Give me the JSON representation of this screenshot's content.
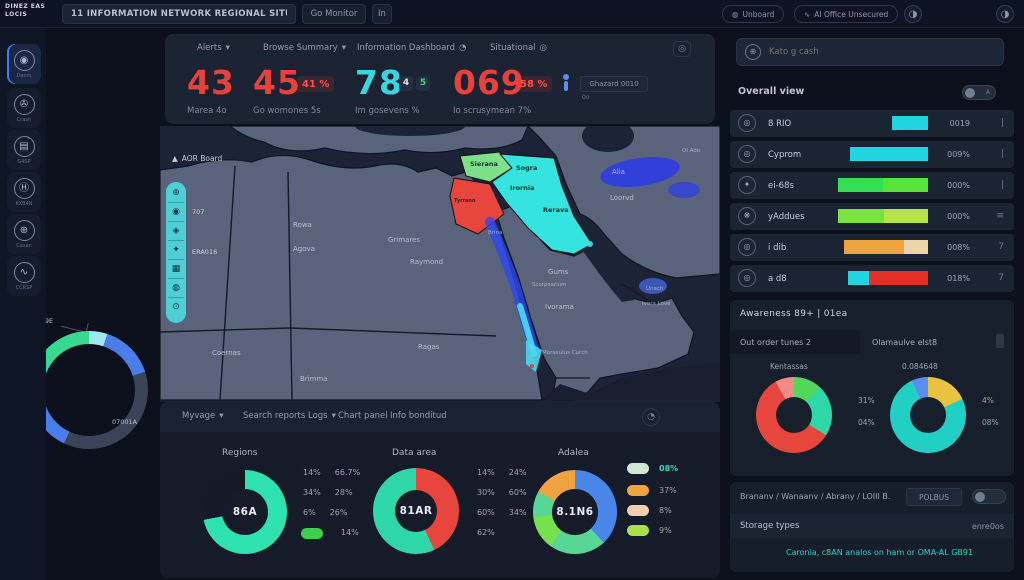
{
  "colors": {
    "accent_cyan": "#3ad6e0",
    "alert_red": "#e8413a",
    "teal": "#2fd6a8",
    "green": "#42d957",
    "lime": "#8ae23c",
    "orange": "#eda23f",
    "blue": "#4a7de8"
  },
  "icons": {
    "caret": "▾",
    "half": "◑",
    "ring": "◎",
    "clock": "◔",
    "menu": "≡"
  },
  "topbar": {
    "logo_line1": "DINEZ EAS",
    "logo_line2": "LOCIS",
    "search_value": "11 INFORMATION NETWORK REGIONAL SITUATIONAL...",
    "go_button": "Go Monitor",
    "in_button": "In",
    "pill_unboard": "Unboard",
    "pill_ai": "AI Office Unsecured"
  },
  "sidebar": {
    "items": [
      {
        "glyph": "◉",
        "label": "Dacro"
      },
      {
        "glyph": "✇",
        "label": "Crash"
      },
      {
        "glyph": "▤",
        "label": "G4SP"
      },
      {
        "glyph": "Ⓗ",
        "label": "KXB4N"
      },
      {
        "glyph": "⊕",
        "label": "Casan"
      },
      {
        "glyph": "∿",
        "label": "CCRSP"
      }
    ]
  },
  "stats": {
    "tabs": [
      "Alerts",
      "Browse Summary",
      "Information Dashboard",
      "Situational"
    ],
    "items": [
      {
        "value": "43",
        "label": "Marea 4o"
      },
      {
        "value": "45",
        "badge": "41 %",
        "label": "Go womones 5s"
      },
      {
        "value": "78",
        "chip1": "4",
        "chip2": "5",
        "label": "Im gosevens %"
      },
      {
        "value": "069",
        "badge": "58 %",
        "label": "Io scrusymean 7%"
      }
    ],
    "ghost_title": "Ghazard 0010",
    "ghost_sub": "0o"
  },
  "map": {
    "corner_label": "AOR Board",
    "toolbar_label_1": "707",
    "toolbar_label_2": "ERA016",
    "toolbar_glyphs": [
      "⊕",
      "◉",
      "◈",
      "✦",
      "▦",
      "◍",
      "⊙"
    ],
    "labels": [
      "Rowa",
      "Agova",
      "Grimares",
      "Raymond",
      "Sierana",
      "Sogra",
      "Irornia",
      "Rerava",
      "Tyrrann",
      "Alia",
      "Loorvd",
      "Ol Ado",
      "Gums",
      "Scorpsarium",
      "Ivorama",
      "Unach",
      "Ivora Love",
      "Ragas",
      "Morasuius Curch",
      "Coernas",
      "Brimma",
      "Brina"
    ]
  },
  "left_donut": {
    "segments": [
      [
        "#9fe8f2",
        5
      ],
      [
        "#4a7de8",
        15
      ],
      [
        "#3a4357",
        37
      ],
      [
        "#4a7de8",
        12
      ],
      [
        "#2fd6a8",
        16
      ],
      [
        "#35d98f",
        15
      ]
    ],
    "label_a": "WV9E",
    "label_b": "07001A"
  },
  "bottom": {
    "tabs": [
      "Myvage",
      "Search reports Logs",
      "Chart panel",
      "Info bonditud"
    ],
    "sections": [
      {
        "title": "Regions",
        "center": "86A",
        "segments": [
          [
            "#2fe3b0",
            72
          ],
          [
            "#141a27",
            28
          ]
        ],
        "legend": [
          [
            "14%",
            "66.7%"
          ],
          [
            "34%",
            "28%"
          ],
          [
            "6%",
            "26%"
          ],
          [
            "",
            "14%"
          ]
        ],
        "pill_color": "#3ecf4e"
      },
      {
        "title": "Data area",
        "center": "81AR",
        "segments": [
          [
            "#e8453c",
            43
          ],
          [
            "#2fd6a8",
            57
          ]
        ],
        "legend": [
          [
            "14%",
            "24%"
          ],
          [
            "30%",
            "60%"
          ],
          [
            "60%",
            "34%"
          ],
          [
            "",
            "62%"
          ]
        ]
      },
      {
        "title": "Adalea",
        "center": "8.1N6",
        "segments": [
          [
            "#4a86e8",
            38
          ],
          [
            "#57d695",
            22
          ],
          [
            "#74e14d",
            13
          ],
          [
            "#57d695",
            10
          ],
          [
            "#efa23f",
            17
          ]
        ],
        "legend_pills": [
          [
            "#cfe8d6",
            "08%"
          ],
          [
            "#f0a43c",
            "37%"
          ],
          [
            "#f3cfae",
            "8%"
          ],
          [
            "#a8e24a",
            "9%"
          ]
        ]
      }
    ],
    "chart_data": {
      "type": "pie",
      "note": "three donut gauges",
      "values_pct": [
        [
          72,
          28
        ],
        [
          43,
          57
        ],
        [
          38,
          22,
          13,
          10,
          17
        ]
      ]
    }
  },
  "right": {
    "search_placeholder": "Kato g cash",
    "section_title": "Overall view",
    "rows": [
      {
        "glyph": "◎",
        "label": "8 RIO",
        "value": "0019",
        "ind": "|",
        "bar": [
          [
            "#22d3e0",
            36
          ]
        ]
      },
      {
        "glyph": "◎",
        "label": "Cyprom",
        "value": "009%",
        "ind": "|",
        "bar": [
          [
            "#22d3e0",
            78
          ]
        ]
      },
      {
        "glyph": "✦",
        "label": "ei-68s",
        "value": "000%",
        "ind": "|",
        "bar": [
          [
            "#35de52",
            45
          ],
          [
            "#58e23c",
            45
          ]
        ]
      },
      {
        "glyph": "❋",
        "label": "yAddues",
        "value": "000%",
        "ind": "≡",
        "bar": [
          [
            "#79e23c",
            46
          ],
          [
            "#b5e44a",
            44
          ]
        ]
      },
      {
        "glyph": "◎",
        "label": "i dib",
        "value": "008%",
        "ind": "7",
        "bar": [
          [
            "#eda43f",
            60
          ],
          [
            "#ecd5a8",
            24
          ]
        ]
      },
      {
        "glyph": "◎",
        "label": "a d8",
        "value": "018%",
        "ind": "7",
        "bar": [
          [
            "#22d3e0",
            21
          ],
          [
            "#e23028",
            59
          ]
        ]
      }
    ],
    "aware": {
      "title": "Awareness 89+ | 01ea",
      "tab_active": "Out order tunes 2",
      "tab_inactive": "Olamaulve elst8",
      "donuts": [
        {
          "title": "Kentassas",
          "segments": [
            [
              "#54d65a",
              12
            ],
            [
              "#2fd6a8",
              22
            ],
            [
              "#e8453c",
              58
            ],
            [
              "#ef8d86",
              8
            ]
          ],
          "side1": "31%",
          "side2": "04%"
        },
        {
          "title": "0.084648",
          "segments": [
            [
              "#e9c33f",
              18
            ],
            [
              "#22cfc4",
              75
            ],
            [
              "#5b8df0",
              7
            ]
          ],
          "side1": "4%",
          "side2": "08%"
        }
      ]
    },
    "footer": {
      "breadcrumb": "Brananv / Wanaanv / Abrany / LOIII B.",
      "button": "POLBUS",
      "row_label": "Storage types",
      "row_value": "enre0os",
      "note": "Caronia, c8AN analos on ham or OMA-AL GB91"
    }
  }
}
